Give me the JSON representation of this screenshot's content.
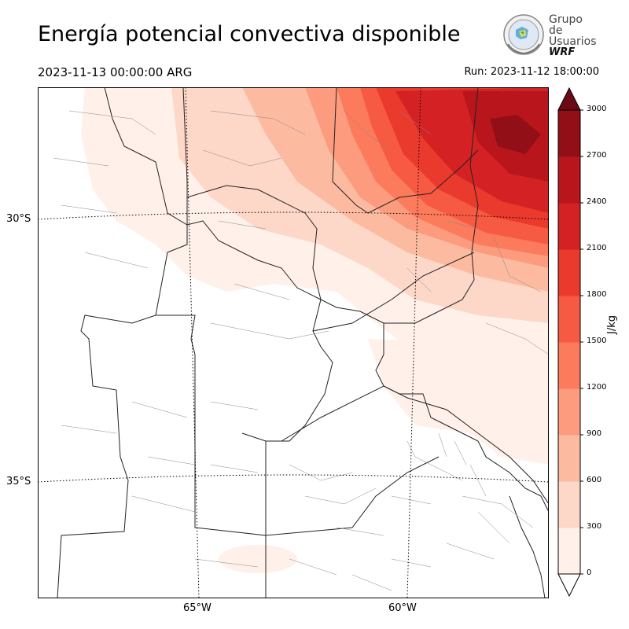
{
  "header": {
    "title": "Energía potencial convectiva disponible",
    "valid_time": "2023-11-13 00:00:00 ARG",
    "run_time": "Run: 2023-11-12 18:00:00"
  },
  "logo": {
    "line1": "Grupo de",
    "line2": "Usuarios",
    "line3": "WRF"
  },
  "map": {
    "variable": "CAPE",
    "lat_labels": [
      "30°S",
      "35°S"
    ],
    "lon_labels": [
      "65°W",
      "60°W"
    ]
  },
  "colorbar": {
    "unit": "J/kg",
    "ticks": [
      "0",
      "300",
      "600",
      "900",
      "1200",
      "1500",
      "1800",
      "2100",
      "2400",
      "2700",
      "3000"
    ],
    "colors": [
      "#fff0ea",
      "#fdd7c8",
      "#fcbba1",
      "#fc9b7e",
      "#fb7b5c",
      "#f75a42",
      "#ea3a2d",
      "#d42224",
      "#b8161c",
      "#930f18",
      "#6b0915"
    ]
  }
}
